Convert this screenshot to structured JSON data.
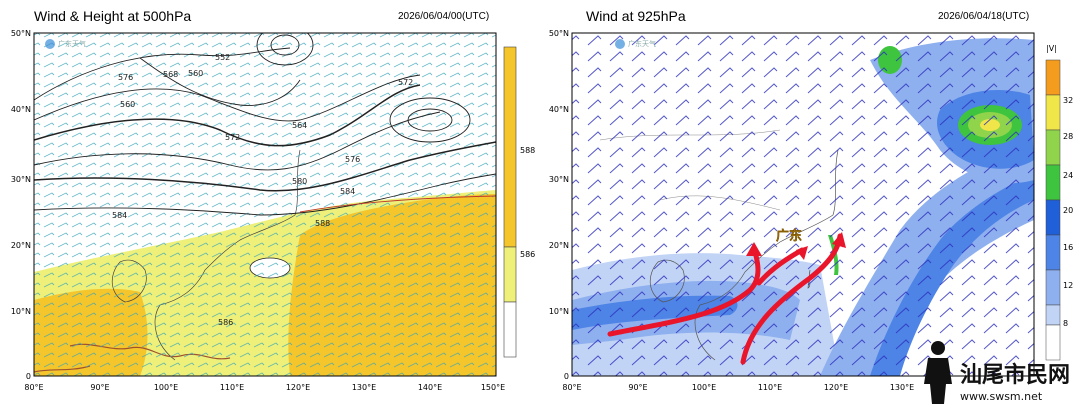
{
  "left": {
    "title": "Wind & Height at 500hPa",
    "time": "2026/06/04/00(UTC)",
    "watermark": "广东天气",
    "colorbar_labels": [
      "588",
      "586"
    ],
    "contour_labels": [
      "576",
      "568",
      "560",
      "552",
      "572",
      "564",
      "580",
      "584",
      "588",
      "586"
    ],
    "fill_colors": {
      "ge588": "#f5c52c",
      "586_588": "#eef07a",
      "below": "#ffffff",
      "barbs": "#3aa6b8",
      "terrain": "#a0522d"
    }
  },
  "right": {
    "title": "Wind at 925hPa",
    "time": "2026/06/04/18(UTC)",
    "watermark": "广东天气",
    "map_label": "广东",
    "colorbar_unit": "|V|",
    "colorbar_labels": [
      "32",
      "28",
      "24",
      "20",
      "16",
      "12",
      "8"
    ],
    "colorbar_colors": [
      "#f39c1e",
      "#f0e64a",
      "#8fd44a",
      "#3ec43e",
      "#1f5fd8",
      "#4d84e6",
      "#8fb0ee",
      "#c2d4f6",
      "#ffffff"
    ],
    "arrow_color": "#e8152b",
    "barb_color": "#2c2fbf"
  },
  "axes": {
    "x_ticks": [
      "80°E",
      "90°E",
      "100°E",
      "110°E",
      "120°E",
      "130°E",
      "140°E",
      "150°E"
    ],
    "y_ticks": [
      "50°N",
      "40°N",
      "30°N",
      "20°N",
      "10°N",
      "0"
    ]
  },
  "badge": {
    "text": "汕尾市民网",
    "url": "www.swsm.net"
  }
}
